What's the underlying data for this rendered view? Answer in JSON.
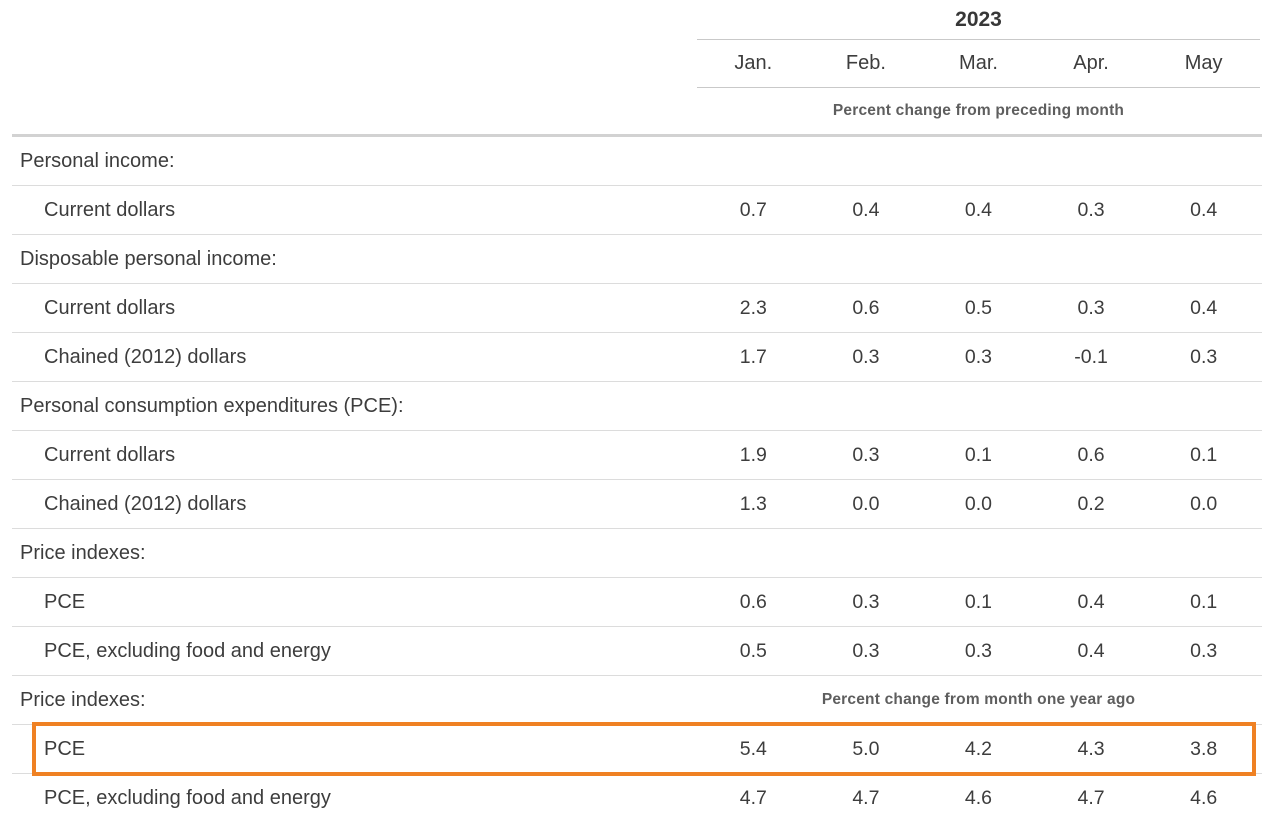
{
  "table": {
    "year_header": "2023",
    "months": [
      "Jan.",
      "Feb.",
      "Mar.",
      "Apr.",
      "May"
    ],
    "unit_note_top": "Percent change from preceding month",
    "unit_note_bottom": "Percent change from month one year ago",
    "highlight_color": "#EF8123",
    "rows": [
      {
        "kind": "section",
        "label": "Personal income:"
      },
      {
        "kind": "item",
        "label": "Current dollars",
        "values": [
          "0.7",
          "0.4",
          "0.4",
          "0.3",
          "0.4"
        ]
      },
      {
        "kind": "section",
        "label": "Disposable personal income:"
      },
      {
        "kind": "item",
        "label": "Current dollars",
        "values": [
          "2.3",
          "0.6",
          "0.5",
          "0.3",
          "0.4"
        ]
      },
      {
        "kind": "item",
        "label": "Chained (2012) dollars",
        "values": [
          "1.7",
          "0.3",
          "0.3",
          "-0.1",
          "0.3"
        ]
      },
      {
        "kind": "section",
        "label": "Personal consumption expenditures (PCE):"
      },
      {
        "kind": "item",
        "label": "Current dollars",
        "values": [
          "1.9",
          "0.3",
          "0.1",
          "0.6",
          "0.1"
        ]
      },
      {
        "kind": "item",
        "label": "Chained (2012) dollars",
        "values": [
          "1.3",
          "0.0",
          "0.0",
          "0.2",
          "0.0"
        ]
      },
      {
        "kind": "section",
        "label": "Price indexes:"
      },
      {
        "kind": "item",
        "label": "PCE",
        "values": [
          "0.6",
          "0.3",
          "0.1",
          "0.4",
          "0.1"
        ]
      },
      {
        "kind": "item",
        "label": "PCE, excluding food and energy",
        "values": [
          "0.5",
          "0.3",
          "0.3",
          "0.4",
          "0.3"
        ]
      },
      {
        "kind": "section",
        "label": "Price indexes:",
        "note": "Percent change from month one year ago"
      },
      {
        "kind": "item",
        "label": "PCE",
        "values": [
          "5.4",
          "5.0",
          "4.2",
          "4.3",
          "3.8"
        ],
        "highlighted": true
      },
      {
        "kind": "item",
        "label": "PCE, excluding food and energy",
        "values": [
          "4.7",
          "4.7",
          "4.6",
          "4.7",
          "4.6"
        ],
        "last": true
      }
    ]
  },
  "chart_data": {
    "type": "table",
    "title": "2023",
    "columns": [
      "Jan.",
      "Feb.",
      "Mar.",
      "Apr.",
      "May"
    ],
    "sections": [
      {
        "section": "Personal income:",
        "unit": "Percent change from preceding month",
        "rows": [
          {
            "label": "Current dollars",
            "values": [
              0.7,
              0.4,
              0.4,
              0.3,
              0.4
            ]
          }
        ]
      },
      {
        "section": "Disposable personal income:",
        "unit": "Percent change from preceding month",
        "rows": [
          {
            "label": "Current dollars",
            "values": [
              2.3,
              0.6,
              0.5,
              0.3,
              0.4
            ]
          },
          {
            "label": "Chained (2012) dollars",
            "values": [
              1.7,
              0.3,
              0.3,
              -0.1,
              0.3
            ]
          }
        ]
      },
      {
        "section": "Personal consumption expenditures (PCE):",
        "unit": "Percent change from preceding month",
        "rows": [
          {
            "label": "Current dollars",
            "values": [
              1.9,
              0.3,
              0.1,
              0.6,
              0.1
            ]
          },
          {
            "label": "Chained (2012) dollars",
            "values": [
              1.3,
              0.0,
              0.0,
              0.2,
              0.0
            ]
          }
        ]
      },
      {
        "section": "Price indexes:",
        "unit": "Percent change from preceding month",
        "rows": [
          {
            "label": "PCE",
            "values": [
              0.6,
              0.3,
              0.1,
              0.4,
              0.1
            ]
          },
          {
            "label": "PCE, excluding food and energy",
            "values": [
              0.5,
              0.3,
              0.3,
              0.4,
              0.3
            ]
          }
        ]
      },
      {
        "section": "Price indexes:",
        "unit": "Percent change from month one year ago",
        "rows": [
          {
            "label": "PCE",
            "values": [
              5.4,
              5.0,
              4.2,
              4.3,
              3.8
            ],
            "highlighted": true
          },
          {
            "label": "PCE, excluding food and energy",
            "values": [
              4.7,
              4.7,
              4.6,
              4.7,
              4.6
            ]
          }
        ]
      }
    ],
    "annotations": [
      "Orange rectangle highlights the PCE row under 'Percent change from month one year ago' (values 5.4, 5.0, 4.2, 4.3, 3.8)"
    ]
  }
}
